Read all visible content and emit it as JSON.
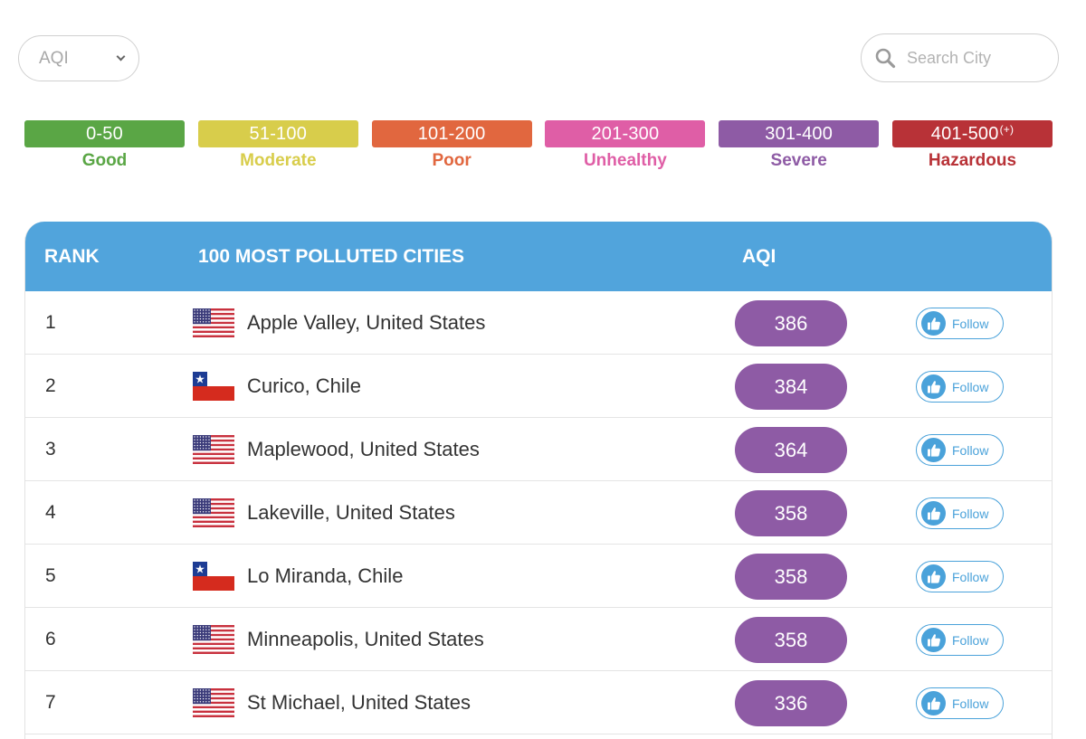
{
  "filter": {
    "selected": "AQI"
  },
  "search": {
    "placeholder": "Search City"
  },
  "legend": [
    {
      "range": "0-50",
      "sup": "",
      "label": "Good",
      "color": "#5aa645",
      "text_color": "#5aa645"
    },
    {
      "range": "51-100",
      "sup": "",
      "label": "Moderate",
      "color": "#d8cd4b",
      "text_color": "#d8cd4b"
    },
    {
      "range": "101-200",
      "sup": "",
      "label": "Poor",
      "color": "#e1673f",
      "text_color": "#e1673f"
    },
    {
      "range": "201-300",
      "sup": "",
      "label": "Unhealthy",
      "color": "#df5ea6",
      "text_color": "#df5ea6"
    },
    {
      "range": "301-400",
      "sup": "",
      "label": "Severe",
      "color": "#8e5ba5",
      "text_color": "#8e5ba5"
    },
    {
      "range": "401-500",
      "sup": "(+)",
      "label": "Hazardous",
      "color": "#b83237",
      "text_color": "#b83237"
    }
  ],
  "table": {
    "header": {
      "rank": "RANK",
      "cities": "100 MOST POLLUTED CITIES",
      "aqi": "AQI"
    },
    "follow_label": "Follow",
    "rows": [
      {
        "rank": "1",
        "city": "Apple Valley, United States",
        "flag": "us-flag-icon",
        "aqi": "386"
      },
      {
        "rank": "2",
        "city": "Curico, Chile",
        "flag": "chile-flag-icon",
        "aqi": "384"
      },
      {
        "rank": "3",
        "city": "Maplewood, United States",
        "flag": "us-flag-icon",
        "aqi": "364"
      },
      {
        "rank": "4",
        "city": "Lakeville, United States",
        "flag": "us-flag-icon",
        "aqi": "358"
      },
      {
        "rank": "5",
        "city": "Lo Miranda, Chile",
        "flag": "chile-flag-icon",
        "aqi": "358"
      },
      {
        "rank": "6",
        "city": "Minneapolis, United States",
        "flag": "us-flag-icon",
        "aqi": "358"
      },
      {
        "rank": "7",
        "city": "St Michael, United States",
        "flag": "us-flag-icon",
        "aqi": "336"
      }
    ]
  },
  "colors": {
    "header_bg": "#51a4dc",
    "severe": "#8e5ba5",
    "follow_accent": "#4aa2da"
  }
}
